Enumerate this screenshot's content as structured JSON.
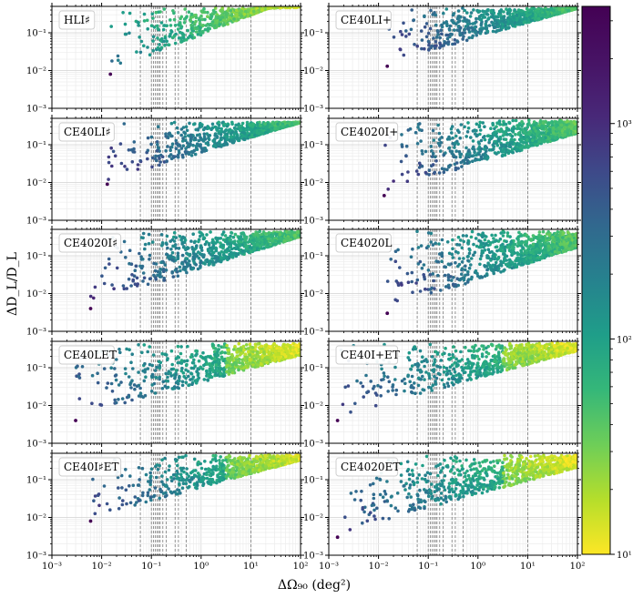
{
  "chart_data": {
    "type": "scatter",
    "title": "",
    "xlabel": "ΔΩ₉₀ (deg²)",
    "ylabel": "ΔD_L/D_L",
    "xscale": "log",
    "yscale": "log",
    "xlim": [
      0.001,
      100
    ],
    "ylim": [
      0.001,
      0.5
    ],
    "x_ticks": [
      0.001,
      0.01,
      0.1,
      1,
      10,
      100
    ],
    "x_tick_labels": [
      "10⁻³",
      "10⁻²",
      "10⁻¹",
      "10⁰",
      "10¹",
      "10²"
    ],
    "y_ticks": [
      0.001,
      0.01,
      0.1
    ],
    "y_tick_labels": [
      "10⁻³",
      "10⁻²",
      "10⁻¹"
    ],
    "reference_lines_x": [
      0.06,
      0.1,
      0.11,
      0.12,
      0.13,
      0.14,
      0.15,
      0.17,
      0.2,
      0.3,
      0.35,
      0.5,
      10
    ],
    "colorbar": {
      "scale": "log",
      "range": [
        10,
        3500
      ],
      "colormap": "viridis_r",
      "ticks": [
        10,
        100,
        1000
      ],
      "tick_labels": [
        "10¹",
        "10²",
        "10³"
      ]
    },
    "panels": [
      {
        "name": "HLI♯",
        "min_x": 0.015,
        "front_y": 0.008,
        "slope": 0.55,
        "upper_y": 0.45,
        "color_hint": "bright"
      },
      {
        "name": "CE40LI+",
        "min_x": 0.015,
        "front_y": 0.013,
        "slope": 0.4,
        "upper_y": 0.45,
        "color_hint": "mid"
      },
      {
        "name": "CE40LI♯",
        "min_x": 0.013,
        "front_y": 0.009,
        "slope": 0.42,
        "upper_y": 0.4,
        "color_hint": "mid"
      },
      {
        "name": "CE4020I+",
        "min_x": 0.013,
        "front_y": 0.0045,
        "slope": 0.42,
        "upper_y": 0.45,
        "color_hint": "mid"
      },
      {
        "name": "CE4020I♯",
        "min_x": 0.006,
        "front_y": 0.004,
        "slope": 0.45,
        "upper_y": 0.45,
        "color_hint": "mid"
      },
      {
        "name": "CE4020L",
        "min_x": 0.015,
        "front_y": 0.003,
        "slope": 0.45,
        "upper_y": 0.45,
        "color_hint": "mid"
      },
      {
        "name": "CE40LET",
        "min_x": 0.003,
        "front_y": 0.004,
        "slope": 0.38,
        "upper_y": 0.45,
        "color_hint": "mixed"
      },
      {
        "name": "CE40I+ET",
        "min_x": 0.0015,
        "front_y": 0.004,
        "slope": 0.38,
        "upper_y": 0.45,
        "color_hint": "mixed"
      },
      {
        "name": "CE40I♯ET",
        "min_x": 0.006,
        "front_y": 0.008,
        "slope": 0.38,
        "upper_y": 0.45,
        "color_hint": "mixed"
      },
      {
        "name": "CE4020ET",
        "min_x": 0.0015,
        "front_y": 0.003,
        "slope": 0.38,
        "upper_y": 0.45,
        "color_hint": "mixed"
      }
    ]
  }
}
